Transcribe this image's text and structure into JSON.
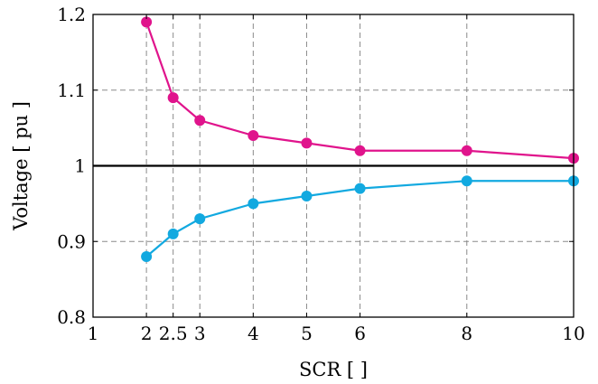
{
  "chart_data": {
    "type": "line",
    "xlabel": "SCR [ ]",
    "ylabel": "Voltage [ pu ]",
    "xlim": [
      1,
      10
    ],
    "ylim": [
      0.8,
      1.2
    ],
    "x_ticks": [
      1,
      2,
      2.5,
      3,
      4,
      5,
      6,
      8,
      10
    ],
    "x_tick_labels": [
      "1",
      "2",
      "2.5",
      "3",
      "4",
      "5",
      "6",
      "8",
      "10"
    ],
    "y_ticks": [
      0.8,
      0.9,
      1.0,
      1.1,
      1.2
    ],
    "y_tick_labels": [
      "0.8",
      "0.9",
      "1",
      "1.1",
      "1.2"
    ],
    "grid": true,
    "grid_style": "dashed",
    "x_grid_lines": [
      2,
      2.5,
      3,
      4,
      5,
      6,
      8
    ],
    "y_grid_lines": [
      0.9,
      1.1
    ],
    "reference_line": {
      "y": 1.0,
      "color": "#000000"
    },
    "x": [
      2,
      2.5,
      3,
      4,
      5,
      6,
      8,
      10
    ],
    "series": [
      {
        "color": "#e0148c",
        "values": [
          1.19,
          1.09,
          1.06,
          1.04,
          1.03,
          1.02,
          1.02,
          1.01
        ]
      },
      {
        "color": "#12a9e0",
        "values": [
          0.88,
          0.91,
          0.93,
          0.95,
          0.96,
          0.97,
          0.98,
          0.98
        ]
      }
    ]
  }
}
